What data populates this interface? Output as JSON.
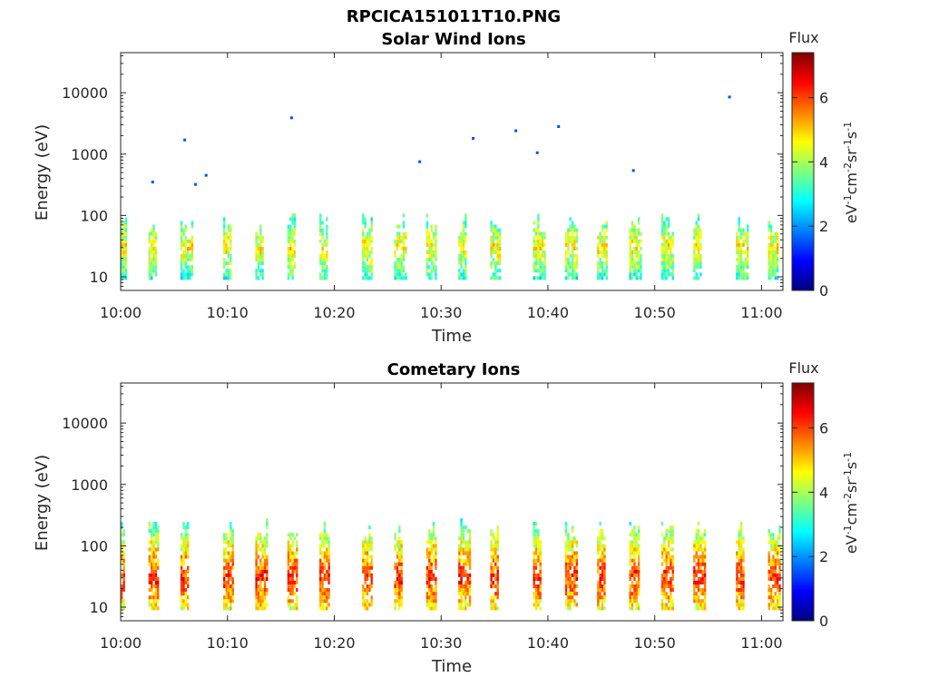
{
  "figure": {
    "title": "RPCICA151011T10.PNG"
  },
  "colormap": {
    "stops": [
      "#00007f",
      "#0000ff",
      "#007fff",
      "#00ffff",
      "#7fff7f",
      "#ffff00",
      "#ff7f00",
      "#ff0000",
      "#7f0000"
    ]
  },
  "chart_data": [
    {
      "type": "heatmap",
      "title": "Solar Wind Ions",
      "xlabel": "Time",
      "ylabel": "Energy (eV)",
      "yscale": "log",
      "ylim": [
        6,
        45000
      ],
      "xlim_minutes_after_10_00": [
        0,
        62
      ],
      "x_ticks": [
        "10:00",
        "10:10",
        "10:20",
        "10:30",
        "10:40",
        "10:50",
        "11:00"
      ],
      "y_ticks": [
        "10",
        "100",
        "1000",
        "10000"
      ],
      "colorbar": {
        "title": "Flux",
        "unit": "eV-1cm-2sr-1s-1",
        "range": [
          0,
          7.4
        ],
        "ticks": [
          "0",
          "2",
          "4",
          "6"
        ]
      },
      "grid": false,
      "burst_times": [
        "10:00",
        "10:03",
        "10:06",
        "10:10",
        "10:13",
        "10:16",
        "10:19",
        "10:23",
        "10:26",
        "10:29",
        "10:32",
        "10:35",
        "10:39",
        "10:42",
        "10:45",
        "10:48",
        "10:51",
        "10:54",
        "10:58",
        "11:01"
      ],
      "burst_energy_range_eV": [
        10,
        100
      ],
      "burst_peak_flux": 5.5,
      "isolated_points": [
        {
          "time": "10:03",
          "energy": 350,
          "flux": 1.5
        },
        {
          "time": "10:06",
          "energy": 1700,
          "flux": 1.5
        },
        {
          "time": "10:07",
          "energy": 320,
          "flux": 1.5
        },
        {
          "time": "10:08",
          "energy": 450,
          "flux": 1.5
        },
        {
          "time": "10:16",
          "energy": 3900,
          "flux": 1.5
        },
        {
          "time": "10:28",
          "energy": 750,
          "flux": 1.5
        },
        {
          "time": "10:33",
          "energy": 1800,
          "flux": 1.5
        },
        {
          "time": "10:37",
          "energy": 2400,
          "flux": 1.5
        },
        {
          "time": "10:39",
          "energy": 1050,
          "flux": 1.5
        },
        {
          "time": "10:41",
          "energy": 2800,
          "flux": 1.5
        },
        {
          "time": "10:48",
          "energy": 540,
          "flux": 1.5
        },
        {
          "time": "10:57",
          "energy": 8500,
          "flux": 1.5
        }
      ]
    },
    {
      "type": "heatmap",
      "title": "Cometary Ions",
      "xlabel": "Time",
      "ylabel": "Energy (eV)",
      "yscale": "log",
      "ylim": [
        6,
        45000
      ],
      "xlim_minutes_after_10_00": [
        0,
        62
      ],
      "x_ticks": [
        "10:00",
        "10:10",
        "10:20",
        "10:30",
        "10:40",
        "10:50",
        "11:00"
      ],
      "y_ticks": [
        "10",
        "100",
        "1000",
        "10000"
      ],
      "colorbar": {
        "title": "Flux",
        "unit": "eV-1cm-2sr-1s-1",
        "range": [
          0,
          7.4
        ],
        "ticks": [
          "0",
          "2",
          "4",
          "6"
        ]
      },
      "grid": false,
      "burst_times": [
        "10:00",
        "10:03",
        "10:06",
        "10:10",
        "10:13",
        "10:16",
        "10:19",
        "10:23",
        "10:26",
        "10:29",
        "10:32",
        "10:35",
        "10:39",
        "10:42",
        "10:45",
        "10:48",
        "10:51",
        "10:54",
        "10:58",
        "11:01"
      ],
      "burst_energy_range_eV": [
        10,
        250
      ],
      "burst_peak_flux": 7.0,
      "isolated_points": []
    }
  ]
}
